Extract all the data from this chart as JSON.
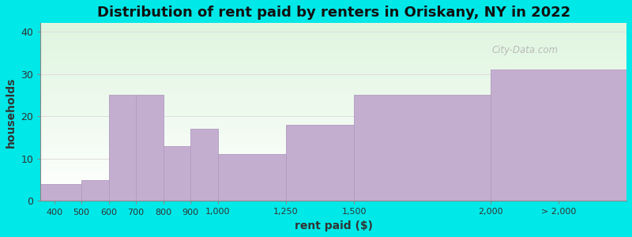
{
  "title": "Distribution of rent paid by renters in Oriskany, NY in 2022",
  "xlabel": "rent paid ($)",
  "ylabel": "households",
  "bar_left_edges": [
    350,
    500,
    600,
    700,
    800,
    900,
    1000,
    1250,
    1500,
    2000
  ],
  "bar_right_edges": [
    500,
    600,
    700,
    800,
    900,
    1000,
    1250,
    1500,
    2000,
    2500
  ],
  "bar_heights": [
    4,
    5,
    25,
    25,
    13,
    17,
    11,
    18,
    25,
    31
  ],
  "bar_color": "#c4aed0",
  "bar_edgecolor": "#b09ac0",
  "xtick_positions": [
    400,
    500,
    600,
    700,
    800,
    900,
    1000,
    1250,
    1500,
    2000,
    2250
  ],
  "xtick_labels": [
    "400",
    "500",
    "600",
    "700",
    "800",
    "900",
    "1,000",
    "1,250",
    "1,500",
    "2,000",
    "> 2,000"
  ],
  "ytick_positions": [
    0,
    10,
    20,
    30,
    40
  ],
  "ylim": [
    0,
    42
  ],
  "xlim": [
    350,
    2500
  ],
  "bg_color": "#00e8e8",
  "plot_bg_top": "#e8f5e8",
  "plot_bg_bottom": "#f8fff8",
  "grid_color": "#dddddd",
  "title_fontsize": 13,
  "axis_label_fontsize": 10,
  "watermark_text": "City-Data.com"
}
